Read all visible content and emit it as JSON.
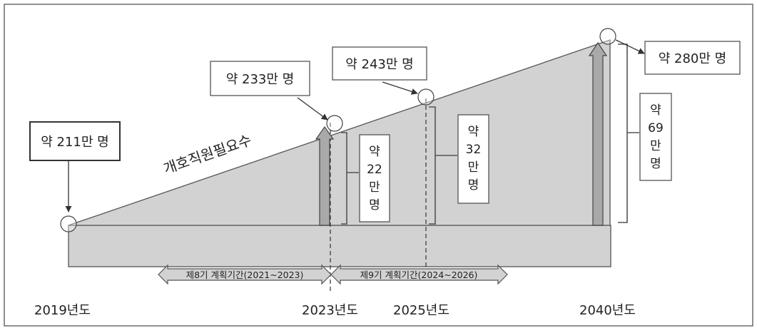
{
  "callouts": {
    "start": "약 211만 명",
    "y2023": "약 233만 명",
    "y2025": "약 243만 명",
    "y2040": "약 280만 명"
  },
  "increments": {
    "y2023": [
      "약",
      "22",
      "만",
      "명"
    ],
    "y2025": [
      "약",
      "32",
      "만",
      "명"
    ],
    "y2040": [
      "약",
      "69",
      "만",
      "명"
    ]
  },
  "trend_label": "개호직원필요수",
  "periods": {
    "p8": "제8기 계획기간(2021~2023)",
    "p9": "제9기 계획기간(2024~2026)"
  },
  "years": {
    "y2019": "2019년도",
    "y2023": "2023년도",
    "y2025": "2025년도",
    "y2040": "2040년도"
  },
  "colors": {
    "area_fill": "#d2d2d2",
    "arrow_fill": "#a9a9a9",
    "line": "#555555"
  }
}
